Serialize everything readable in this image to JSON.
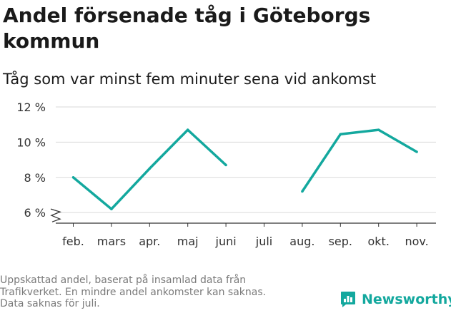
{
  "title": "Andel försenade tåg i Göteborgs kommun",
  "subtitle": "Tåg som var minst fem minuter sena vid ankomst",
  "footnote": [
    "Uppskattad andel, baserat på insamlad data från",
    "Trafikverket. En mindre andel ankomster kan saknas.",
    "Data saknas för juli."
  ],
  "brand": {
    "name": "Newsworthy",
    "icon": "newsworthy-logo-icon"
  },
  "colors": {
    "line": "#13a89e",
    "grid": "#d9d9d9",
    "axis": "#333333",
    "brand": "#13a89e",
    "footnote": "#7a7a7a"
  },
  "chart_data": {
    "type": "line",
    "categories": [
      "feb.",
      "mars",
      "apr.",
      "maj",
      "juni",
      "juli",
      "aug.",
      "sep.",
      "okt.",
      "nov."
    ],
    "series": [
      {
        "values": [
          8.0,
          6.2,
          8.5,
          10.7,
          8.7,
          null,
          7.2,
          10.45,
          10.7,
          9.45
        ]
      }
    ],
    "yticks": [
      6,
      8,
      10,
      12
    ],
    "ytick_labels": [
      "6 %",
      "8 %",
      "10 %",
      "12 %"
    ],
    "ylim": [
      5.4,
      12
    ],
    "y_axis_break": true,
    "grid": true
  }
}
